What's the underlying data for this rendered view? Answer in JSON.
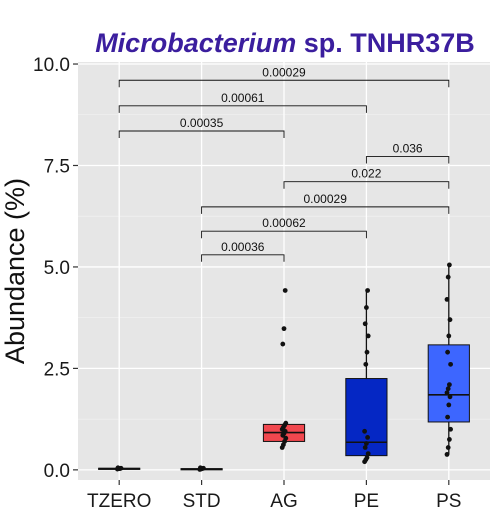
{
  "chart_data": {
    "type": "box",
    "title_italic": "Microbacterium",
    "title_rest": " sp. TNHR37B",
    "title_color": "#3b1e9e",
    "xlabel": "",
    "ylabel": "Abundance (%)",
    "ylim": [
      -0.25,
      10.05
    ],
    "yticks": [
      0.0,
      2.5,
      5.0,
      7.5,
      10.0
    ],
    "ytick_labels": [
      "0.0",
      "2.5",
      "5.0",
      "7.5",
      "10.0"
    ],
    "categories": [
      "TZERO",
      "STD",
      "AG",
      "PE",
      "PS"
    ],
    "panel_background": "#e6e6e6",
    "grid": true,
    "boxes": [
      {
        "category": "TZERO",
        "q1": 0.02,
        "median": 0.03,
        "q3": 0.04,
        "whisker_low": 0.02,
        "whisker_high": 0.04,
        "color": "#222222",
        "points": [
          0.02,
          0.03,
          0.03,
          0.04,
          0.05
        ]
      },
      {
        "category": "STD",
        "q1": 0.01,
        "median": 0.02,
        "q3": 0.03,
        "whisker_low": 0.01,
        "whisker_high": 0.03,
        "color": "#222222",
        "points": [
          0.01,
          0.02,
          0.03,
          0.04,
          0.05
        ]
      },
      {
        "category": "AG",
        "q1": 0.7,
        "median": 0.92,
        "q3": 1.12,
        "whisker_low": 0.55,
        "whisker_high": 1.15,
        "color": "#f0474e",
        "points": [
          0.55,
          0.62,
          0.7,
          0.78,
          0.85,
          0.9,
          0.95,
          1.0,
          1.05,
          1.1,
          1.15,
          3.1,
          3.48,
          4.42
        ]
      },
      {
        "category": "PE",
        "q1": 0.35,
        "median": 0.68,
        "q3": 2.25,
        "whisker_low": 0.2,
        "whisker_high": 4.42,
        "color": "#0527c4",
        "points": [
          0.2,
          0.25,
          0.3,
          0.4,
          0.55,
          0.65,
          0.8,
          0.95,
          2.6,
          2.9,
          3.3,
          3.6,
          4.0,
          4.42
        ]
      },
      {
        "category": "PS",
        "q1": 1.18,
        "median": 1.85,
        "q3": 3.08,
        "whisker_low": 0.38,
        "whisker_high": 5.05,
        "color": "#3d66ff",
        "points": [
          0.38,
          0.55,
          0.75,
          1.0,
          1.3,
          1.6,
          1.8,
          1.9,
          2.0,
          2.1,
          2.6,
          2.9,
          3.3,
          3.7,
          4.2,
          4.75,
          5.05
        ]
      }
    ],
    "comparisons": [
      {
        "from": "TZERO",
        "to": "PS",
        "label": "0.00029",
        "y": 9.6
      },
      {
        "from": "TZERO",
        "to": "PE",
        "label": "0.00061",
        "y": 8.97
      },
      {
        "from": "TZERO",
        "to": "AG",
        "label": "0.00035",
        "y": 8.35
      },
      {
        "from": "PE",
        "to": "PS",
        "label": "0.036",
        "y": 7.72
      },
      {
        "from": "AG",
        "to": "PS",
        "label": "0.022",
        "y": 7.1
      },
      {
        "from": "STD",
        "to": "PS",
        "label": "0.00029",
        "y": 6.48
      },
      {
        "from": "STD",
        "to": "PE",
        "label": "0.00062",
        "y": 5.88
      },
      {
        "from": "STD",
        "to": "AG",
        "label": "0.00036",
        "y": 5.3
      }
    ]
  }
}
